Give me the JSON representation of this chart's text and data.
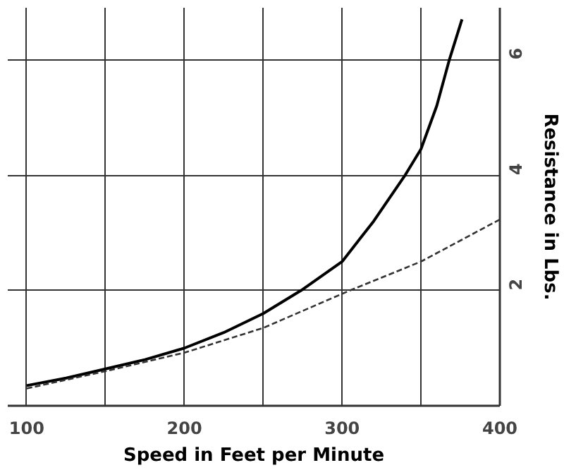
{
  "chart_data": {
    "type": "line",
    "xlabel": "Speed in Feet per Minute",
    "ylabel": "Resistance in Lbs.",
    "xlim": [
      88,
      400
    ],
    "ylim": [
      0,
      6.9
    ],
    "xticks": [
      100,
      {
        "value": 150,
        "label": null
      },
      200,
      {
        "value": 250,
        "label": null
      },
      300,
      {
        "value": 350,
        "label": null
      },
      400
    ],
    "yticks": [
      2,
      4,
      6
    ],
    "grid": true,
    "marker": "none",
    "series": [
      {
        "color": "#000000",
        "line_style": "solid",
        "x": [
          100,
          125,
          150,
          175,
          200,
          225,
          250,
          274,
          300,
          320,
          340,
          350,
          360,
          368,
          376
        ],
        "values": [
          0.35,
          0.48,
          0.64,
          0.8,
          1.0,
          1.27,
          1.6,
          2.0,
          2.5,
          3.2,
          4.0,
          4.45,
          5.2,
          6.0,
          6.7
        ]
      },
      {
        "color": "#333333",
        "line_style": "dashed",
        "x": [
          100,
          150,
          200,
          250,
          305,
          350,
          400
        ],
        "values": [
          0.3,
          0.6,
          0.92,
          1.35,
          2.0,
          2.5,
          3.23
        ]
      }
    ]
  }
}
